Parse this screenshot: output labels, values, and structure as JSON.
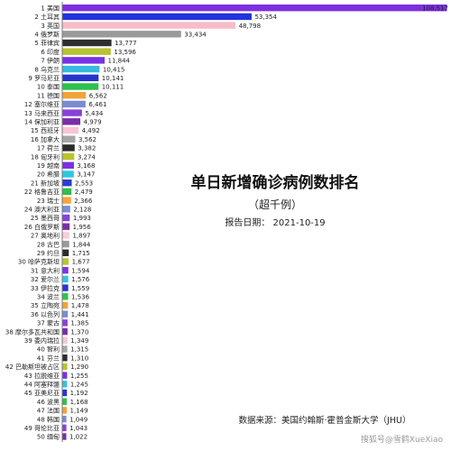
{
  "title": "单日新增确诊病例数排名",
  "subtitle": "（超千例）",
  "date_line": "报告日期：  2021-10-19",
  "source": "数据来源：美国约翰斯·霍普金斯大学（JHU）",
  "watermark": "搜狐号@雪鹤XueXiao",
  "chart_data": {
    "type": "bar",
    "orientation": "horizontal",
    "categories": [
      "美国",
      "土耳其",
      "英国",
      "俄罗斯",
      "菲律宾",
      "印度",
      "伊朗",
      "乌克兰",
      "罗马尼亚",
      "泰国",
      "德国",
      "塞尔维亚",
      "马来西亚",
      "保加利亚",
      "西班牙",
      "加拿大",
      "荷兰",
      "匈牙利",
      "越南",
      "希腊",
      "新加坡",
      "格鲁吉亚",
      "瑞士",
      "澳大利亚",
      "墨西哥",
      "白俄罗斯",
      "奥地利",
      "古巴",
      "约旦",
      "哈萨克斯坦",
      "意大利",
      "爱尔兰",
      "伊拉克",
      "波兰",
      "立陶宛",
      "以色列",
      "蒙古",
      "摩尔多瓦共和国",
      "委内瑞拉",
      "智利",
      "芬兰",
      "巴勒斯坦被占区",
      "拉脱维亚",
      "阿塞拜疆",
      "亚美尼亚",
      "波黑",
      "法国",
      "韩国",
      "哥伦比亚",
      "缅甸"
    ],
    "ranks": [
      1,
      2,
      3,
      4,
      5,
      6,
      7,
      8,
      9,
      10,
      11,
      12,
      13,
      14,
      15,
      16,
      17,
      18,
      19,
      20,
      21,
      22,
      23,
      24,
      25,
      26,
      27,
      28,
      29,
      30,
      31,
      32,
      33,
      34,
      35,
      36,
      37,
      38,
      39,
      40,
      41,
      42,
      43,
      44,
      45,
      46,
      47,
      48,
      49,
      50
    ],
    "values": [
      108517,
      53354,
      48798,
      33434,
      13777,
      13596,
      11844,
      10415,
      10141,
      10111,
      6562,
      6461,
      5434,
      4979,
      4492,
      3562,
      3382,
      3274,
      3168,
      3147,
      2553,
      2479,
      2366,
      2128,
      1993,
      1956,
      1897,
      1844,
      1715,
      1677,
      1594,
      1576,
      1559,
      1536,
      1478,
      1441,
      1385,
      1370,
      1349,
      1315,
      1310,
      1290,
      1255,
      1245,
      1192,
      1168,
      1149,
      1049,
      1043,
      1022
    ],
    "value_labels": [
      "108,517",
      "53,354",
      "48,798",
      "33,434",
      "13,777",
      "13,596",
      "11,844",
      "10,415",
      "10,141",
      "10,111",
      "6,562",
      "6,461",
      "5,434",
      "4,979",
      "4,492",
      "3,562",
      "3,382",
      "3,274",
      "3,168",
      "3,147",
      "2,553",
      "2,479",
      "2,366",
      "2,128",
      "1,993",
      "1,956",
      "1,897",
      "1,844",
      "1,715",
      "1,677",
      "1,594",
      "1,576",
      "1,559",
      "1,536",
      "1,478",
      "1,441",
      "1,385",
      "1,370",
      "1,349",
      "1,315",
      "1,310",
      "1,290",
      "1,255",
      "1,245",
      "1,192",
      "1,168",
      "1,149",
      "1,049",
      "1,043",
      "1,022"
    ],
    "colors": [
      "#7d2fe0",
      "#2233dd",
      "#f6bcc8",
      "#9a9a9a",
      "#2e2e2e",
      "#b9c230",
      "#7a31e6",
      "#38b9e0",
      "#2535cc",
      "#2ec04b",
      "#f4a23a",
      "#7a8cd0",
      "#8a3fd8",
      "#7a2ea8",
      "#f7c6d4",
      "#a6a6a6",
      "#2a2a2a",
      "#b8c42e",
      "#7c2fe4",
      "#2ec7e0",
      "#2e3bd0",
      "#2fbf4a",
      "#f6a43a",
      "#7b8dd0",
      "#8642d8",
      "#7a2fa8",
      "#f8cdd8",
      "#9b9b9b",
      "#2c2c2c",
      "#bbc432",
      "#7e33e2",
      "#35c3e0",
      "#2636cc",
      "#33c04e",
      "#f2a23a",
      "#7a8ed0",
      "#8b42d8",
      "#762ea6",
      "#f6c8d4",
      "#a8a8a8",
      "#2e2e2e",
      "#b9c230",
      "#7c2fe0",
      "#35c1de",
      "#2838cc",
      "#2ec04b",
      "#f4a23a",
      "#7b8dd0",
      "#8a3fd8",
      "#7a2ea8"
    ],
    "xlim": [
      0,
      108517
    ]
  }
}
